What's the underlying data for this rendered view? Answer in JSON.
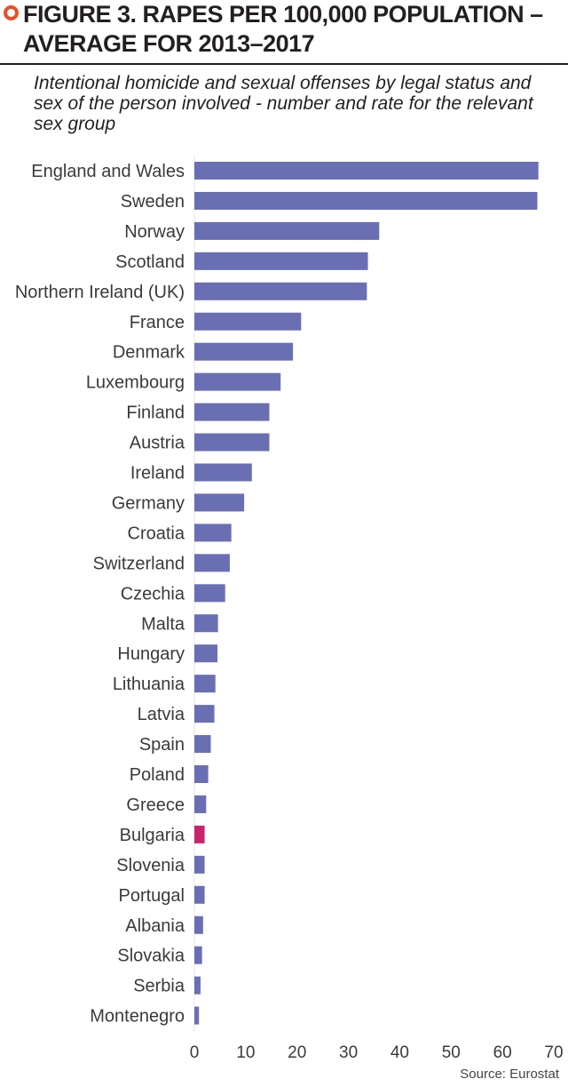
{
  "header": {
    "title": "FIGURE 3. RAPES PER 100,000 POPULATION –\nAVERAGE FOR 2013–2017",
    "subtitle": "Intentional homicide and sexual offenses by legal status and sex of the person involved - number and rate for the relevant sex group",
    "source": "Source: Eurostat"
  },
  "colors": {
    "bar": "#6a6fb4",
    "highlight": "#c8246b",
    "accent": "#e8502a"
  },
  "chart_data": {
    "type": "bar",
    "orientation": "horizontal",
    "title": "FIGURE 3. RAPES PER 100,000 POPULATION – AVERAGE FOR 2013–2017",
    "subtitle": "Intentional homicide and sexual offenses by legal status and sex of the person involved - number and rate for the relevant sex group",
    "categories": [
      "England and Wales",
      "Sweden",
      "Norway",
      "Scotland",
      "Northern Ireland (UK)",
      "France",
      "Denmark",
      "Luxembourg",
      "Finland",
      "Austria",
      "Ireland",
      "Germany",
      "Croatia",
      "Switzerland",
      "Czechia",
      "Malta",
      "Hungary",
      "Lithuania",
      "Latvia",
      "Spain",
      "Poland",
      "Greece",
      "Bulgaria",
      "Slovenia",
      "Portugal",
      "Albania",
      "Slovakia",
      "Serbia",
      "Montenegro"
    ],
    "values": [
      67,
      66.8,
      36,
      33.8,
      33.6,
      20.8,
      19.2,
      16.8,
      14.6,
      14.6,
      11.2,
      9.7,
      7.2,
      6.9,
      6.0,
      4.6,
      4.5,
      4.1,
      3.9,
      3.2,
      2.7,
      2.3,
      2.0,
      2.0,
      2.0,
      1.7,
      1.5,
      1.2,
      0.9
    ],
    "highlight": "Bulgaria",
    "xlim": [
      0,
      70
    ],
    "xticks": [
      0,
      10,
      20,
      30,
      40,
      50,
      60,
      70
    ],
    "xlabel": "",
    "ylabel": "",
    "grid": false,
    "legend": "none"
  }
}
